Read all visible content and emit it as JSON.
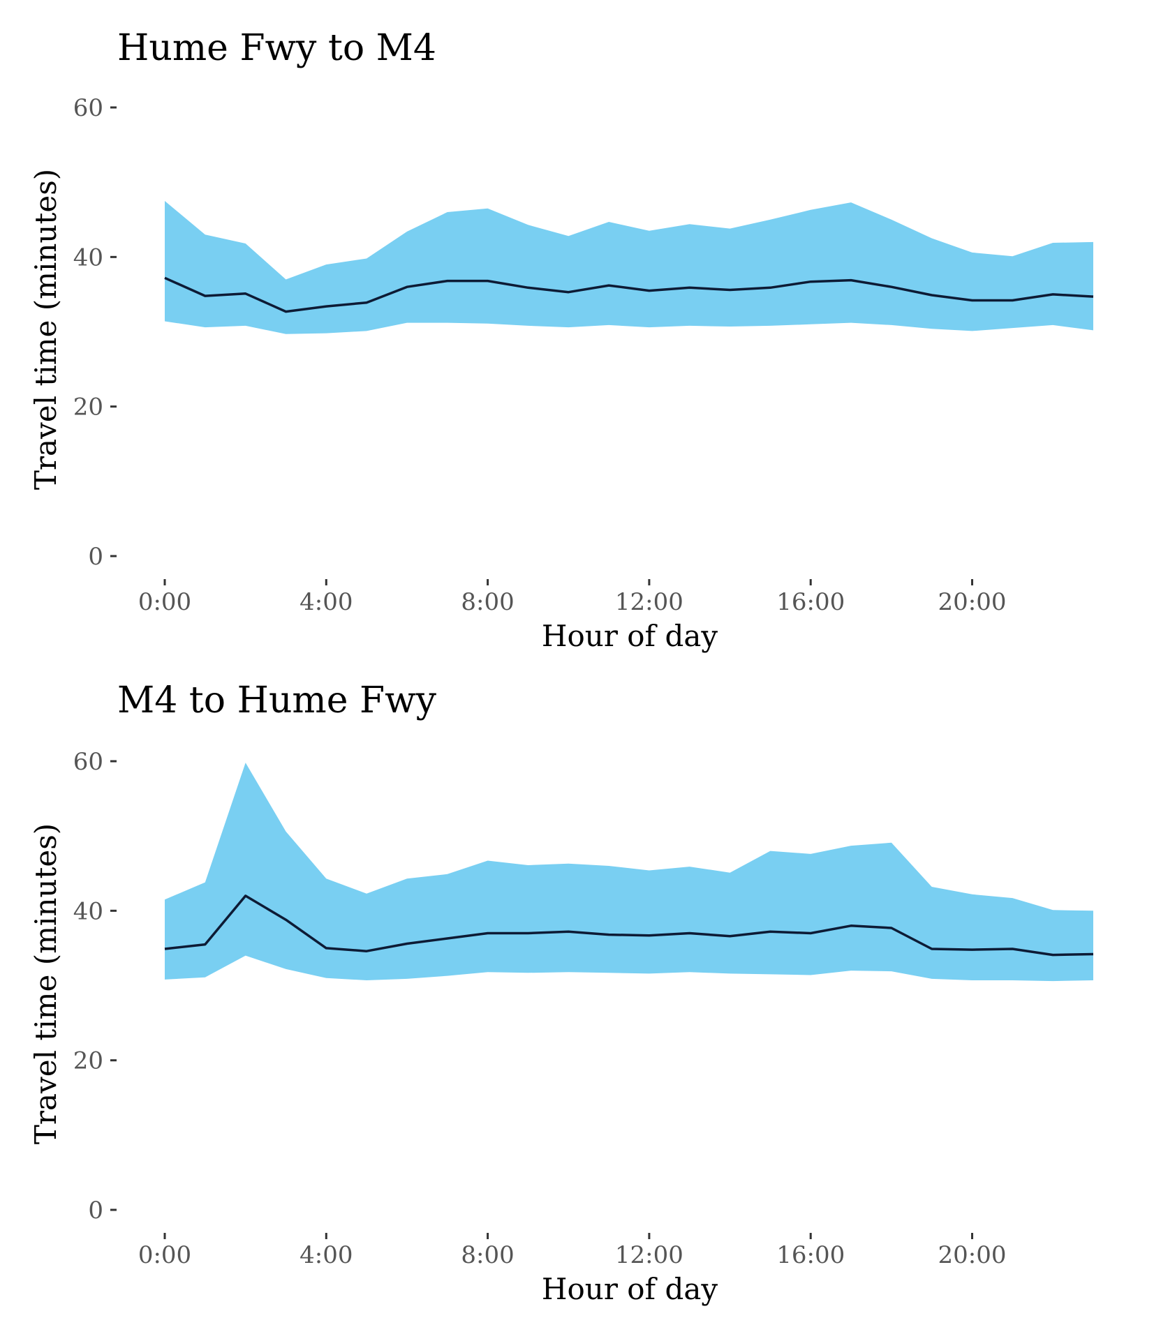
{
  "style": {
    "band_color": "#79CFF2",
    "line_color": "#0D1B35",
    "background": "#FFFFFF"
  },
  "chart_data": [
    {
      "type": "area",
      "title": "Hume Fwy to M4",
      "xlabel": "Hour of day",
      "ylabel": "Travel time (minutes)",
      "ylim": [
        0,
        60
      ],
      "xlim": [
        0,
        23
      ],
      "yticks": [
        0,
        20,
        40,
        60
      ],
      "xticks": [
        0,
        4,
        8,
        12,
        16,
        20
      ],
      "xtick_labels": [
        "0:00",
        "4:00",
        "8:00",
        "12:00",
        "16:00",
        "20:00"
      ],
      "grid": false,
      "x": [
        0,
        1,
        2,
        3,
        4,
        5,
        6,
        7,
        8,
        9,
        10,
        11,
        12,
        13,
        14,
        15,
        16,
        17,
        18,
        19,
        20,
        21,
        22,
        23
      ],
      "series": [
        {
          "role": "band_upper",
          "values": [
            47.5,
            43.0,
            41.8,
            37.0,
            39.0,
            39.8,
            43.4,
            46.0,
            46.5,
            44.3,
            42.8,
            44.7,
            43.5,
            44.4,
            43.8,
            45.0,
            46.3,
            47.3,
            45.0,
            42.5,
            40.6,
            40.1,
            41.9,
            42.0
          ]
        },
        {
          "role": "band_lower",
          "values": [
            31.4,
            30.6,
            30.8,
            29.7,
            29.8,
            30.1,
            31.2,
            31.2,
            31.1,
            30.8,
            30.6,
            30.9,
            30.6,
            30.8,
            30.7,
            30.8,
            31.0,
            31.2,
            30.9,
            30.4,
            30.1,
            30.5,
            30.9,
            30.2
          ]
        },
        {
          "role": "median",
          "values": [
            37.2,
            34.8,
            35.1,
            32.7,
            33.4,
            33.9,
            36.0,
            36.8,
            36.8,
            35.9,
            35.3,
            36.2,
            35.5,
            35.9,
            35.6,
            35.9,
            36.7,
            36.9,
            36.0,
            34.9,
            34.2,
            34.2,
            35.0,
            34.7
          ]
        }
      ]
    },
    {
      "type": "area",
      "title": "M4 to Hume Fwy",
      "xlabel": "Hour of day",
      "ylabel": "Travel time (minutes)",
      "ylim": [
        0,
        60
      ],
      "xlim": [
        0,
        23
      ],
      "yticks": [
        0,
        20,
        40,
        60
      ],
      "xticks": [
        0,
        4,
        8,
        12,
        16,
        20
      ],
      "xtick_labels": [
        "0:00",
        "4:00",
        "8:00",
        "12:00",
        "16:00",
        "20:00"
      ],
      "grid": false,
      "x": [
        0,
        1,
        2,
        3,
        4,
        5,
        6,
        7,
        8,
        9,
        10,
        11,
        12,
        13,
        14,
        15,
        16,
        17,
        18,
        19,
        20,
        21,
        22,
        23
      ],
      "series": [
        {
          "role": "band_upper",
          "values": [
            41.5,
            43.8,
            59.8,
            50.6,
            44.3,
            42.3,
            44.3,
            44.9,
            46.7,
            46.1,
            46.3,
            46.0,
            45.4,
            45.9,
            45.1,
            48.0,
            47.6,
            48.7,
            49.1,
            43.2,
            42.2,
            41.7,
            40.1,
            40.0
          ]
        },
        {
          "role": "band_lower",
          "values": [
            30.8,
            31.1,
            34.0,
            32.2,
            31.0,
            30.7,
            30.9,
            31.3,
            31.8,
            31.7,
            31.8,
            31.7,
            31.6,
            31.8,
            31.6,
            31.5,
            31.4,
            32.0,
            31.9,
            30.9,
            30.7,
            30.7,
            30.6,
            30.7
          ]
        },
        {
          "role": "median",
          "values": [
            34.9,
            35.5,
            42.0,
            38.8,
            35.0,
            34.6,
            35.6,
            36.3,
            37.0,
            37.0,
            37.2,
            36.8,
            36.7,
            37.0,
            36.6,
            37.2,
            37.0,
            38.0,
            37.7,
            34.9,
            34.8,
            34.9,
            34.1,
            34.2
          ]
        }
      ]
    }
  ]
}
